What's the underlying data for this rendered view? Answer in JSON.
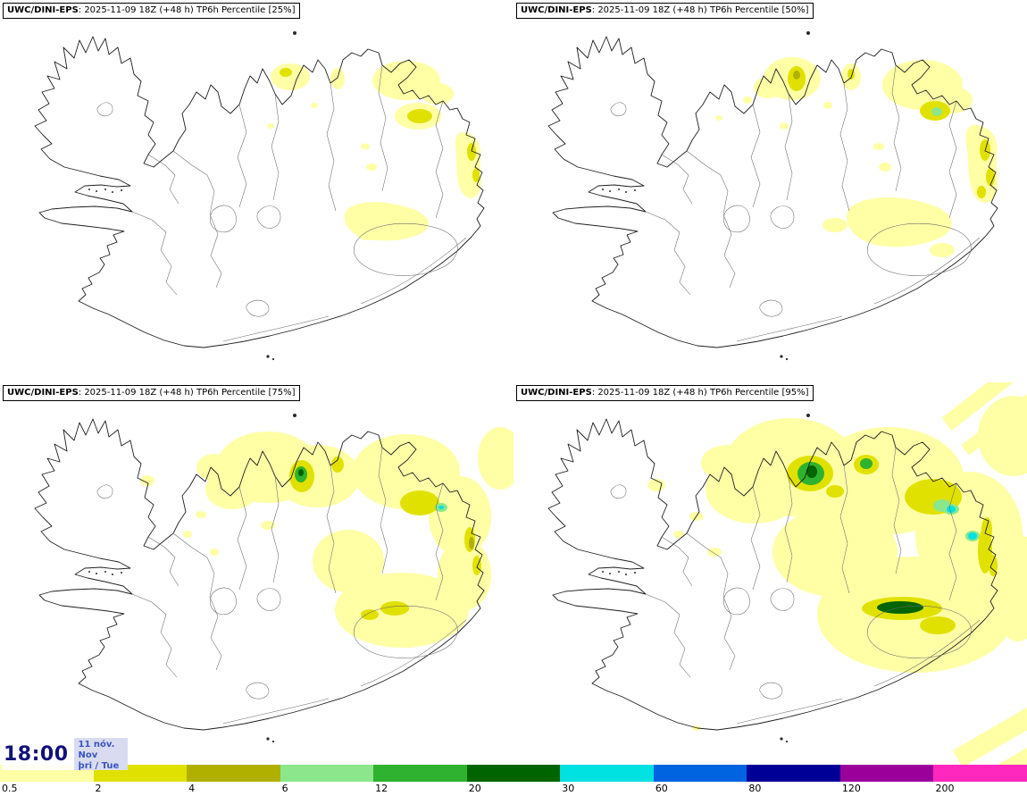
{
  "panels": [
    {
      "model": "UWC/DINI-EPS",
      "info": ": 2025-11-09 18Z (+48 h) TP6h Percentile [25%]"
    },
    {
      "model": "UWC/DINI-EPS",
      "info": ": 2025-11-09 18Z (+48 h) TP6h Percentile [50%]"
    },
    {
      "model": "UWC/DINI-EPS",
      "info": ": 2025-11-09 18Z (+48 h) TP6h Percentile [75%]"
    },
    {
      "model": "UWC/DINI-EPS",
      "info": ": 2025-11-09 18Z (+48 h) TP6h Percentile [95%]"
    }
  ],
  "time_overlay": {
    "time": "18:00",
    "date": "11 nóv.",
    "month": "Nov",
    "weekday": "þri / Tue"
  },
  "colorbar": {
    "ticks": [
      "0.5",
      "2",
      "4",
      "6",
      "12",
      "20",
      "30",
      "60",
      "80",
      "120",
      "200"
    ],
    "colors": [
      "#ffffa6",
      "#e1e100",
      "#b0b000",
      "#8ce68c",
      "#2fb22f",
      "#006400",
      "#00e1e1",
      "#0064e1",
      "#000096",
      "#9b009b",
      "#ff28be"
    ]
  }
}
